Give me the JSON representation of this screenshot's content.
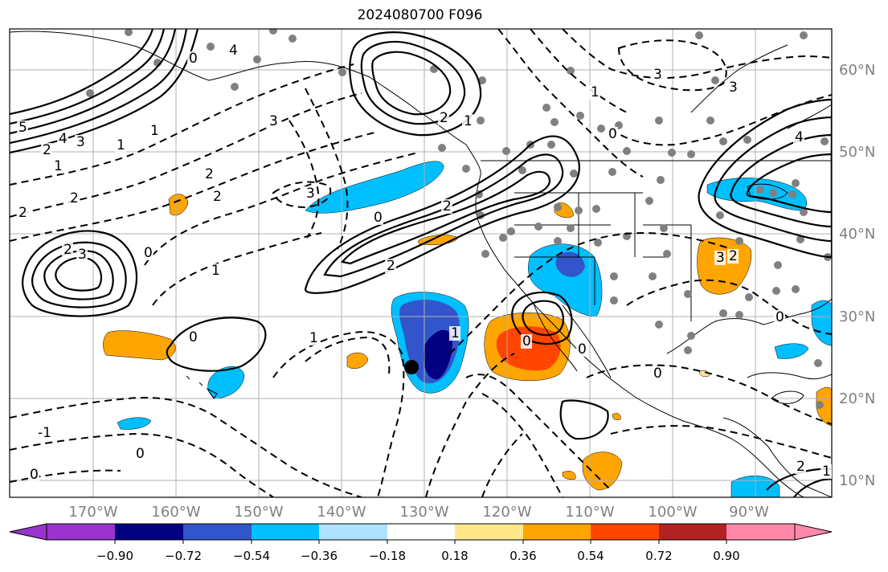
{
  "title": "2024080700 F096",
  "map": {
    "lon_labels": [
      "170°W",
      "160°W",
      "150°W",
      "140°W",
      "130°W",
      "120°W",
      "110°W",
      "100°W",
      "90°W"
    ],
    "lat_labels": [
      "60°N",
      "50°N",
      "40°N",
      "30°N",
      "20°N",
      "10°N"
    ],
    "contour_labels": [
      "5",
      "4",
      "3",
      "2",
      "1",
      "0",
      "1",
      "2",
      "2",
      "3",
      "2",
      "1",
      "0",
      "3",
      "4",
      "3",
      "2",
      "2",
      "1",
      "2",
      "0",
      "0",
      "2",
      "3",
      "0",
      "1",
      "1",
      "2",
      "3",
      "4",
      "2",
      "1",
      "0",
      "0",
      "-1",
      "0",
      "0",
      "1",
      "2",
      "3",
      "0",
      "1",
      "0"
    ]
  },
  "colorbar": {
    "ticks": [
      "−0.90",
      "−0.72",
      "−0.54",
      "−0.36",
      "−0.18",
      "0.18",
      "0.36",
      "0.54",
      "0.72",
      "0.90"
    ],
    "colors": [
      "#9933cc",
      "#000080",
      "#3355cc",
      "#00bfff",
      "#b0e2ff",
      "#ffffff",
      "#ffe88a",
      "#ffa500",
      "#ff4500",
      "#b22222",
      "#ff88aa"
    ]
  },
  "fill_colors": {
    "dark_blue": "#000080",
    "medium_blue": "#3355cc",
    "light_blue": "#00bfff",
    "orange": "#ffa500",
    "red_orange": "#ff4500"
  }
}
